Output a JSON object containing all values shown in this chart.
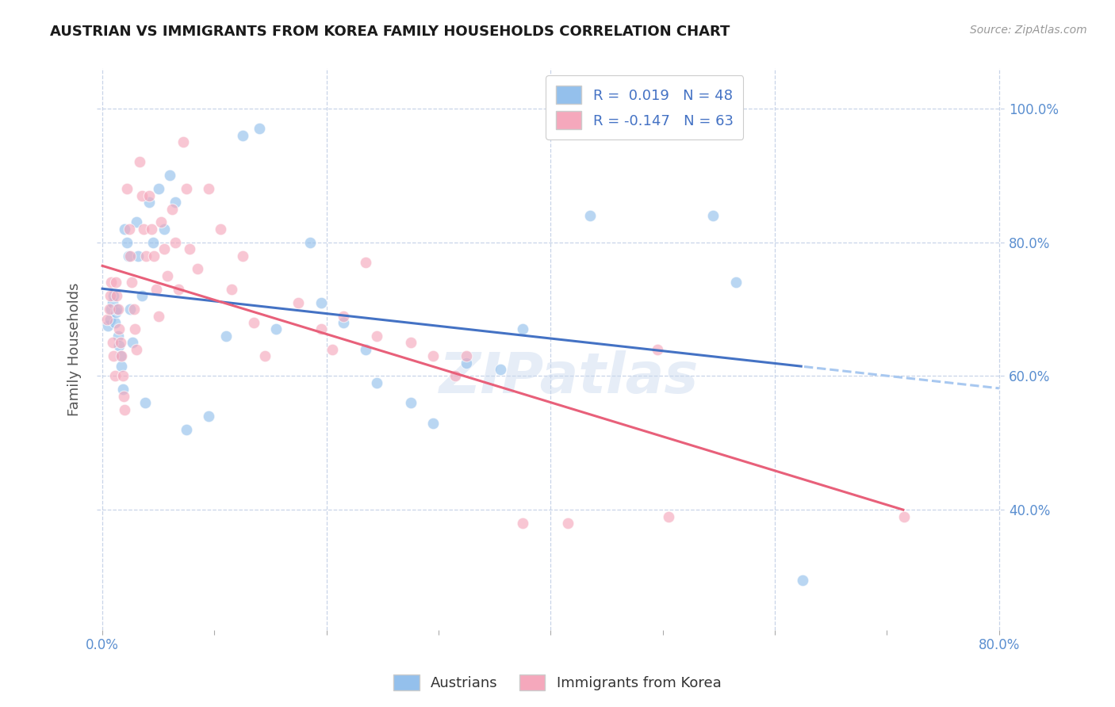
{
  "title": "AUSTRIAN VS IMMIGRANTS FROM KOREA FAMILY HOUSEHOLDS CORRELATION CHART",
  "source": "Source: ZipAtlas.com",
  "ylabel": "Family Households",
  "x_min": 0.0,
  "x_max": 0.8,
  "y_min": 0.22,
  "y_max": 1.06,
  "legend_labels": [
    "Austrians",
    "Immigrants from Korea"
  ],
  "r_austrians": "0.019",
  "n_austrians": "48",
  "r_korea": "-0.147",
  "n_korea": "63",
  "color_austrians": "#94C0EC",
  "color_korea": "#F5A8BC",
  "color_line_austrians": "#4472C4",
  "color_line_korea": "#E8607A",
  "color_trendline_dashed": "#A8C8F0",
  "background_color": "#FFFFFF",
  "grid_color": "#C8D4E8",
  "austrians_x": [
    0.005,
    0.007,
    0.008,
    0.009,
    0.01,
    0.011,
    0.012,
    0.013,
    0.014,
    0.015,
    0.016,
    0.017,
    0.018,
    0.02,
    0.022,
    0.023,
    0.025,
    0.027,
    0.03,
    0.032,
    0.035,
    0.038,
    0.042,
    0.045,
    0.05,
    0.055,
    0.06,
    0.065,
    0.075,
    0.095,
    0.11,
    0.125,
    0.14,
    0.155,
    0.185,
    0.195,
    0.215,
    0.235,
    0.245,
    0.275,
    0.295,
    0.325,
    0.355,
    0.375,
    0.435,
    0.545,
    0.565,
    0.625
  ],
  "austrians_y": [
    0.675,
    0.685,
    0.7,
    0.71,
    0.72,
    0.68,
    0.695,
    0.7,
    0.66,
    0.645,
    0.63,
    0.615,
    0.58,
    0.82,
    0.8,
    0.78,
    0.7,
    0.65,
    0.83,
    0.78,
    0.72,
    0.56,
    0.86,
    0.8,
    0.88,
    0.82,
    0.9,
    0.86,
    0.52,
    0.54,
    0.66,
    0.96,
    0.97,
    0.67,
    0.8,
    0.71,
    0.68,
    0.64,
    0.59,
    0.56,
    0.53,
    0.62,
    0.61,
    0.67,
    0.84,
    0.84,
    0.74,
    0.295
  ],
  "korea_x": [
    0.004,
    0.006,
    0.007,
    0.008,
    0.009,
    0.01,
    0.011,
    0.012,
    0.013,
    0.014,
    0.015,
    0.016,
    0.017,
    0.018,
    0.019,
    0.02,
    0.022,
    0.024,
    0.025,
    0.026,
    0.028,
    0.029,
    0.03,
    0.033,
    0.035,
    0.037,
    0.039,
    0.042,
    0.044,
    0.046,
    0.048,
    0.05,
    0.052,
    0.055,
    0.058,
    0.062,
    0.065,
    0.068,
    0.072,
    0.075,
    0.078,
    0.085,
    0.095,
    0.105,
    0.115,
    0.125,
    0.135,
    0.145,
    0.175,
    0.195,
    0.205,
    0.215,
    0.235,
    0.245,
    0.275,
    0.295,
    0.315,
    0.325,
    0.375,
    0.415,
    0.495,
    0.505,
    0.715
  ],
  "korea_y": [
    0.685,
    0.7,
    0.72,
    0.74,
    0.65,
    0.63,
    0.6,
    0.74,
    0.72,
    0.7,
    0.67,
    0.65,
    0.63,
    0.6,
    0.57,
    0.55,
    0.88,
    0.82,
    0.78,
    0.74,
    0.7,
    0.67,
    0.64,
    0.92,
    0.87,
    0.82,
    0.78,
    0.87,
    0.82,
    0.78,
    0.73,
    0.69,
    0.83,
    0.79,
    0.75,
    0.85,
    0.8,
    0.73,
    0.95,
    0.88,
    0.79,
    0.76,
    0.88,
    0.82,
    0.73,
    0.78,
    0.68,
    0.63,
    0.71,
    0.67,
    0.64,
    0.69,
    0.77,
    0.66,
    0.65,
    0.63,
    0.6,
    0.63,
    0.38,
    0.38,
    0.64,
    0.39,
    0.39
  ],
  "watermark": "ZIPatlas",
  "marker_size": 110,
  "alpha": 0.65
}
